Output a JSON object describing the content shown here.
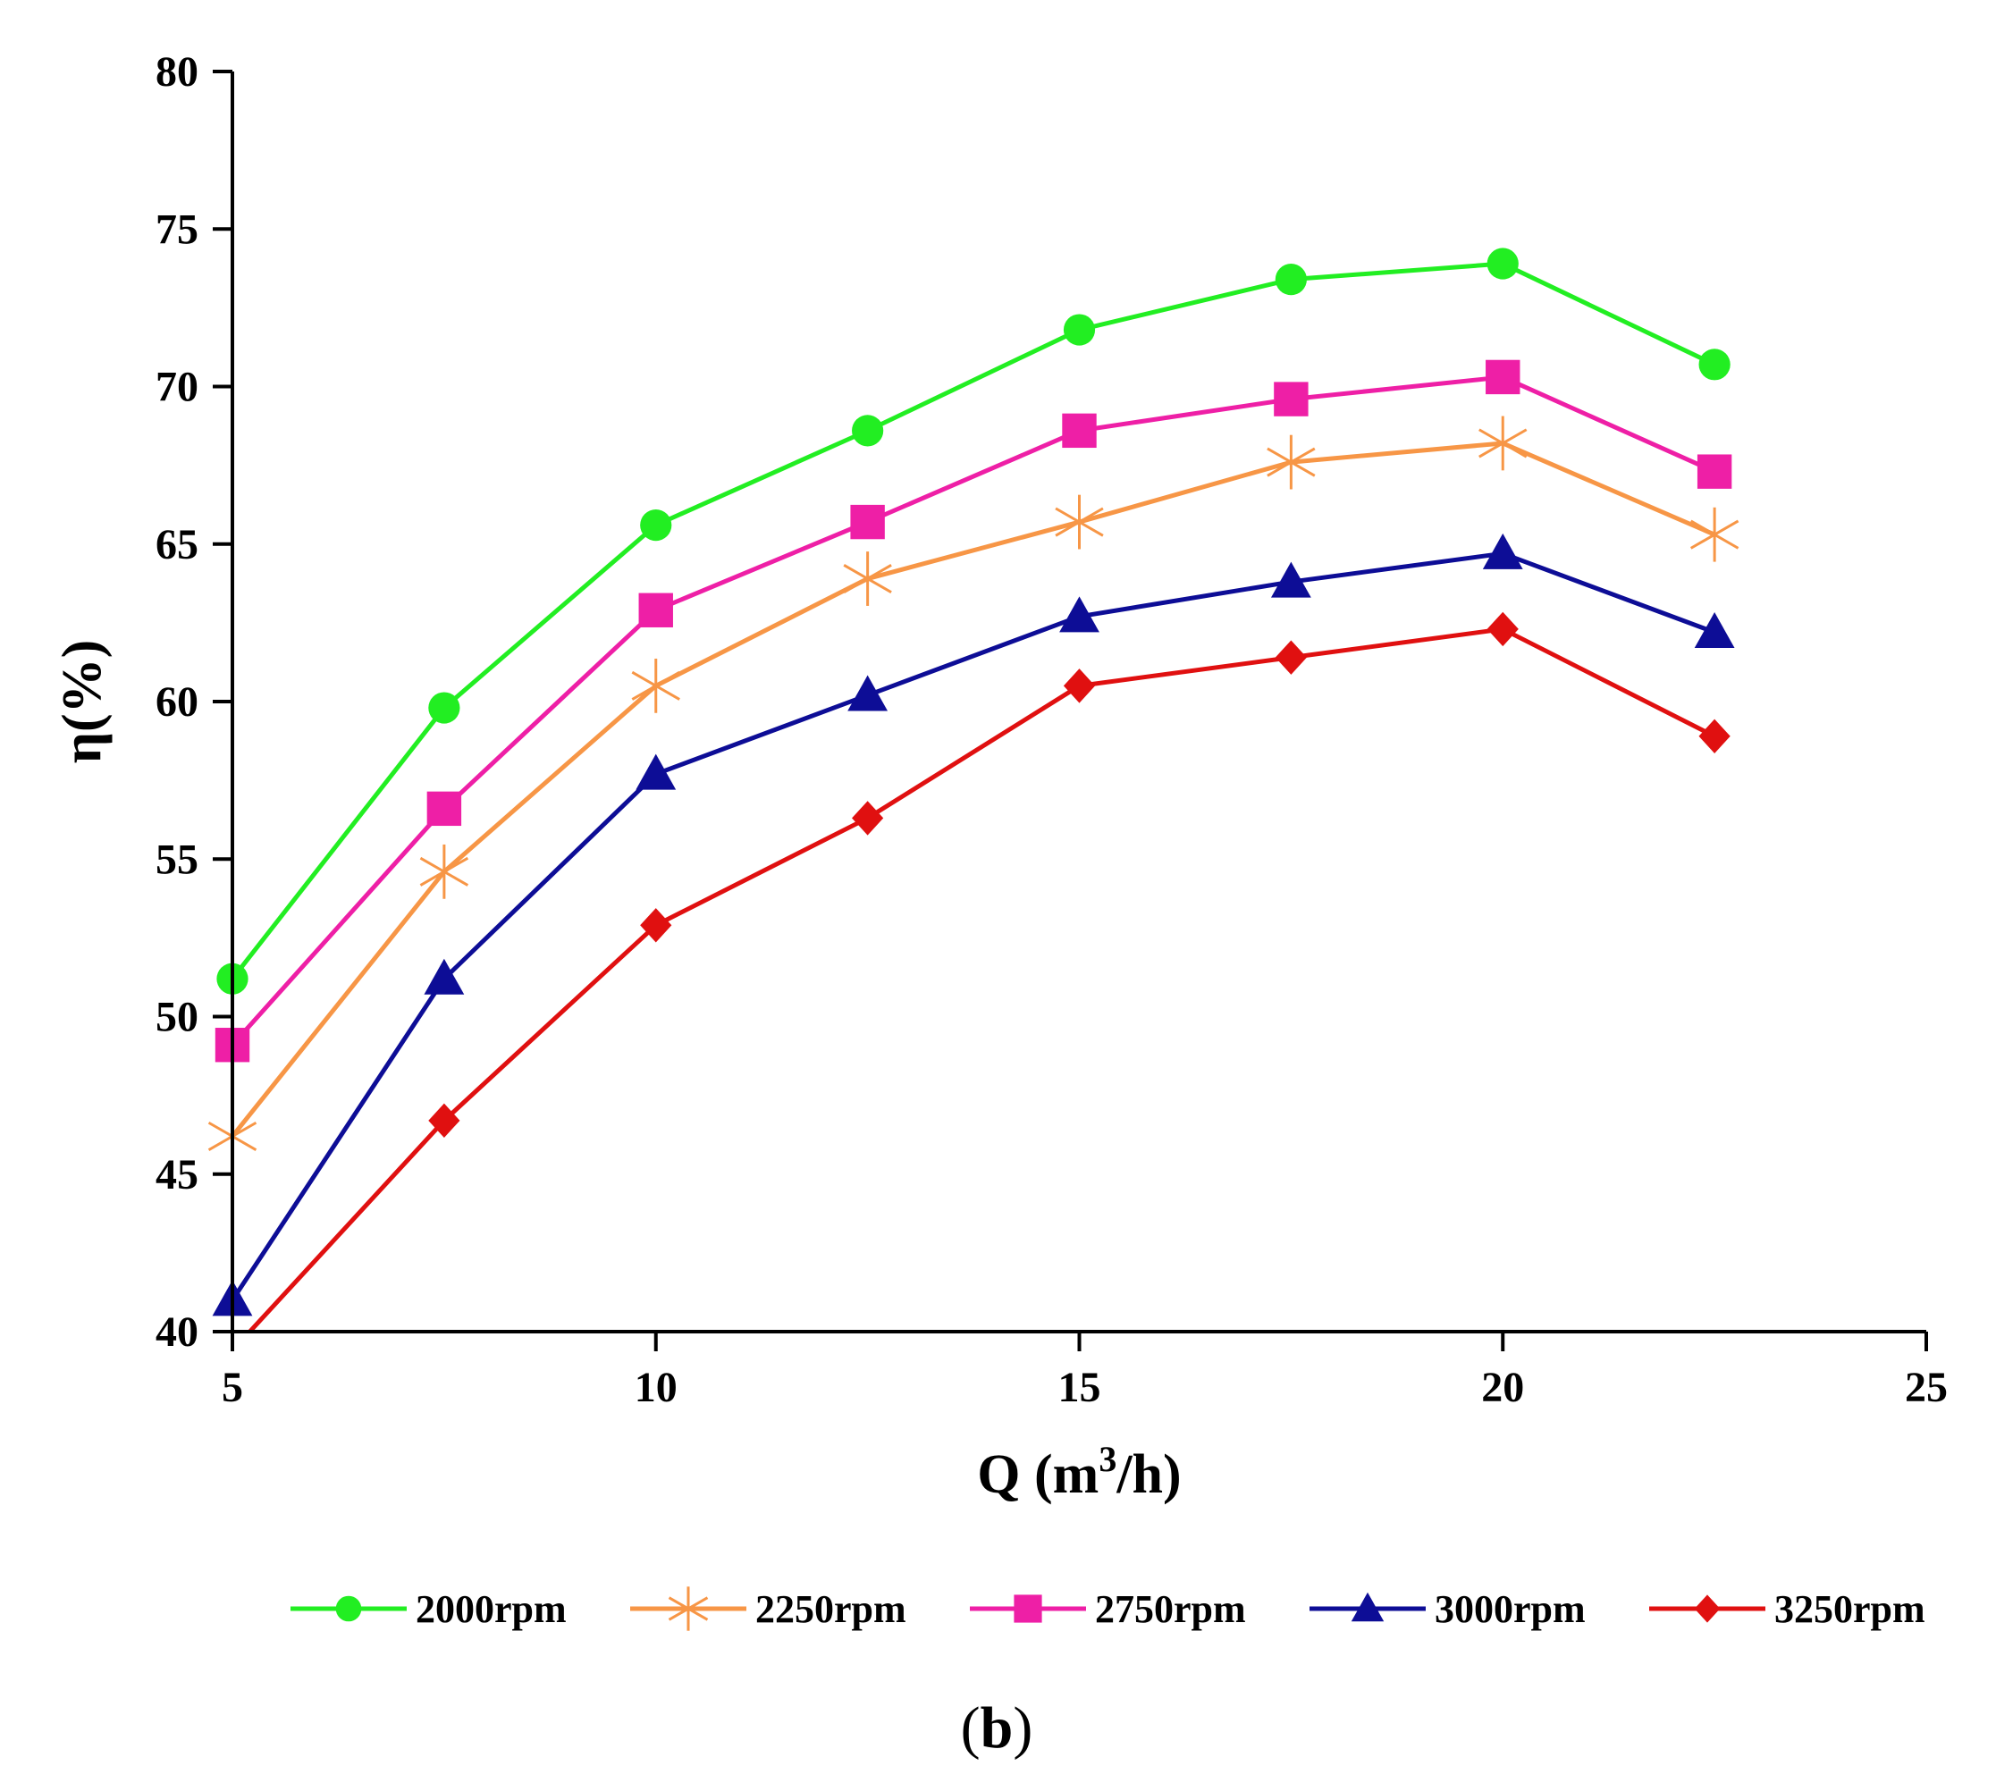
{
  "chart_data": {
    "type": "line",
    "title": "",
    "panel_label": "b",
    "xlabel": "Q (m³/h)",
    "xlabel_parts": {
      "before": "Q (m",
      "sup": "3",
      "after": "/h)"
    },
    "ylabel": "η(%)",
    "xlim": [
      5,
      25
    ],
    "ylim": [
      40,
      80
    ],
    "xticks": [
      5,
      10,
      15,
      20,
      25
    ],
    "yticks": [
      40,
      45,
      50,
      55,
      60,
      65,
      70,
      75,
      80
    ],
    "grid": false,
    "legend_position": "bottom",
    "x": [
      5,
      7.5,
      10,
      12.5,
      15,
      17.5,
      20,
      22.5
    ],
    "series": [
      {
        "name": "2000rpm",
        "color": "#22ee22",
        "marker": "circle",
        "values": [
          51.2,
          59.8,
          65.6,
          68.6,
          71.8,
          73.4,
          73.9,
          70.7
        ]
      },
      {
        "name": "2250rpm",
        "color": "#f79646",
        "marker": "asterisk",
        "values": [
          46.2,
          54.6,
          60.5,
          63.9,
          65.7,
          67.6,
          68.2,
          65.3
        ]
      },
      {
        "name": "2750rpm",
        "color": "#ee1fa6",
        "marker": "square",
        "values": [
          49.1,
          56.6,
          62.9,
          65.7,
          68.6,
          69.6,
          70.3,
          67.3
        ]
      },
      {
        "name": "3000rpm",
        "color": "#0d0d96",
        "marker": "triangle",
        "values": [
          41.0,
          51.2,
          57.7,
          60.2,
          62.7,
          63.8,
          64.7,
          62.2
        ]
      },
      {
        "name": "3250rpm",
        "color": "#e01010",
        "marker": "diamond",
        "values": [
          39.4,
          46.7,
          52.9,
          56.3,
          60.5,
          61.4,
          62.3,
          58.9
        ]
      }
    ]
  }
}
